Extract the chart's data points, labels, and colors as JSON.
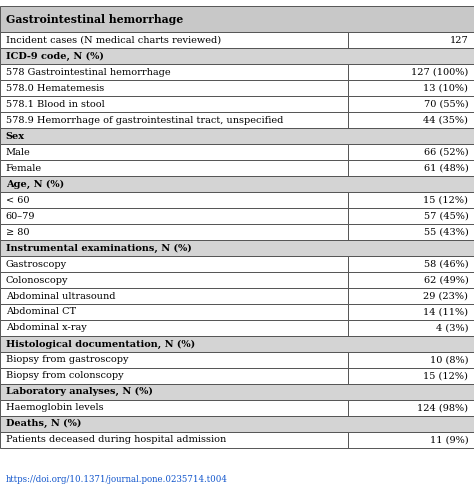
{
  "title": "Gastrointestinal hemorrhage",
  "url": "https://doi.org/10.1371/journal.pone.0235714.t004",
  "rows": [
    {
      "label": "Incident cases (N medical charts reviewed)",
      "value": "127",
      "header": false
    },
    {
      "label": "ICD-9 code, N (%)",
      "value": "",
      "header": true
    },
    {
      "label": "578 Gastrointestinal hemorrhage",
      "value": "127 (100%)",
      "header": false
    },
    {
      "label": "578.0 Hematemesis",
      "value": "13 (10%)",
      "header": false
    },
    {
      "label": "578.1 Blood in stool",
      "value": "70 (55%)",
      "header": false
    },
    {
      "label": "578.9 Hemorrhage of gastrointestinal tract, unspecified",
      "value": "44 (35%)",
      "header": false
    },
    {
      "label": "Sex",
      "value": "",
      "header": true
    },
    {
      "label": "Male",
      "value": "66 (52%)",
      "header": false
    },
    {
      "label": "Female",
      "value": "61 (48%)",
      "header": false
    },
    {
      "label": "Age, N (%)",
      "value": "",
      "header": true
    },
    {
      "label": "< 60",
      "value": "15 (12%)",
      "header": false
    },
    {
      "label": "60–79",
      "value": "57 (45%)",
      "header": false
    },
    {
      "label": "≥ 80",
      "value": "55 (43%)",
      "header": false
    },
    {
      "label": "Instrumental examinations, N (%)",
      "value": "",
      "header": true
    },
    {
      "label": "Gastroscopy",
      "value": "58 (46%)",
      "header": false
    },
    {
      "label": "Colonoscopy",
      "value": "62 (49%)",
      "header": false
    },
    {
      "label": "Abdominal ultrasound",
      "value": "29 (23%)",
      "header": false
    },
    {
      "label": "Abdominal CT",
      "value": "14 (11%)",
      "header": false
    },
    {
      "label": "Abdominal x-ray",
      "value": "4 (3%)",
      "header": false
    },
    {
      "label": "Histological documentation, N (%)",
      "value": "",
      "header": true
    },
    {
      "label": "Biopsy from gastroscopy",
      "value": "10 (8%)",
      "header": false
    },
    {
      "label": "Biopsy from colonscopy",
      "value": "15 (12%)",
      "header": false
    },
    {
      "label": "Laboratory analyses, N (%)",
      "value": "",
      "header": true
    },
    {
      "label": "Haemoglobin levels",
      "value": "124 (98%)",
      "header": false
    },
    {
      "label": "Deaths, N (%)",
      "value": "",
      "header": true
    },
    {
      "label": "Patients deceased during hospital admission",
      "value": "11 (9%)",
      "header": false
    }
  ],
  "col_split": 0.735,
  "bg_section_header": "#d4d4d4",
  "bg_white": "#ffffff",
  "bg_title": "#c8c8c8",
  "border_color": "#555555",
  "title_fontsize": 7.8,
  "cell_fontsize": 7.0,
  "url_color": "#1155CC",
  "url_fontsize": 6.2
}
